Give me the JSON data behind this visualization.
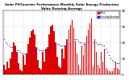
{
  "title": "Solar PV/Inverter Performance Monthly Solar Energy Production Value Running Average",
  "bar_color": "#dd0000",
  "avg_color": "#2222cc",
  "bg_color": "#ffffff",
  "plot_bg": "#ffffff",
  "grid_color": "#999999",
  "values": [
    6,
    3,
    8,
    4,
    10,
    14,
    20,
    18,
    14,
    7,
    3,
    2,
    12,
    6,
    13,
    19,
    23,
    27,
    28,
    25,
    17,
    9,
    4,
    3,
    14,
    8,
    16,
    17,
    25,
    30,
    31,
    27,
    20,
    11,
    5,
    4,
    16,
    10,
    18,
    22,
    28,
    31,
    34,
    29,
    21,
    13,
    6,
    3,
    18,
    12,
    20,
    24,
    28,
    32,
    35,
    5,
    22,
    14,
    6,
    4,
    14,
    8,
    16,
    4,
    3,
    2,
    2,
    2,
    4,
    8,
    4,
    3
  ],
  "running_avg": [
    22,
    20,
    19,
    18,
    17,
    17,
    16,
    16,
    15,
    15,
    14,
    13,
    13,
    13,
    13,
    13,
    14,
    14,
    15,
    16,
    16,
    16,
    15,
    15,
    15,
    15,
    15,
    15,
    16,
    17,
    18,
    19,
    19,
    19,
    19,
    18,
    18,
    18,
    18,
    18,
    19,
    20,
    21,
    22,
    22,
    22,
    21,
    20,
    20,
    19,
    19,
    19,
    20,
    21,
    22,
    20,
    20,
    20,
    19,
    19,
    19,
    18,
    18,
    16,
    14,
    12,
    10,
    9,
    8,
    8,
    7,
    7
  ],
  "ylim": [
    0,
    40
  ],
  "yticks": [
    0,
    10,
    20,
    30,
    40
  ],
  "n_bars": 72,
  "legend_labels": [
    "Value",
    "Running Average"
  ]
}
